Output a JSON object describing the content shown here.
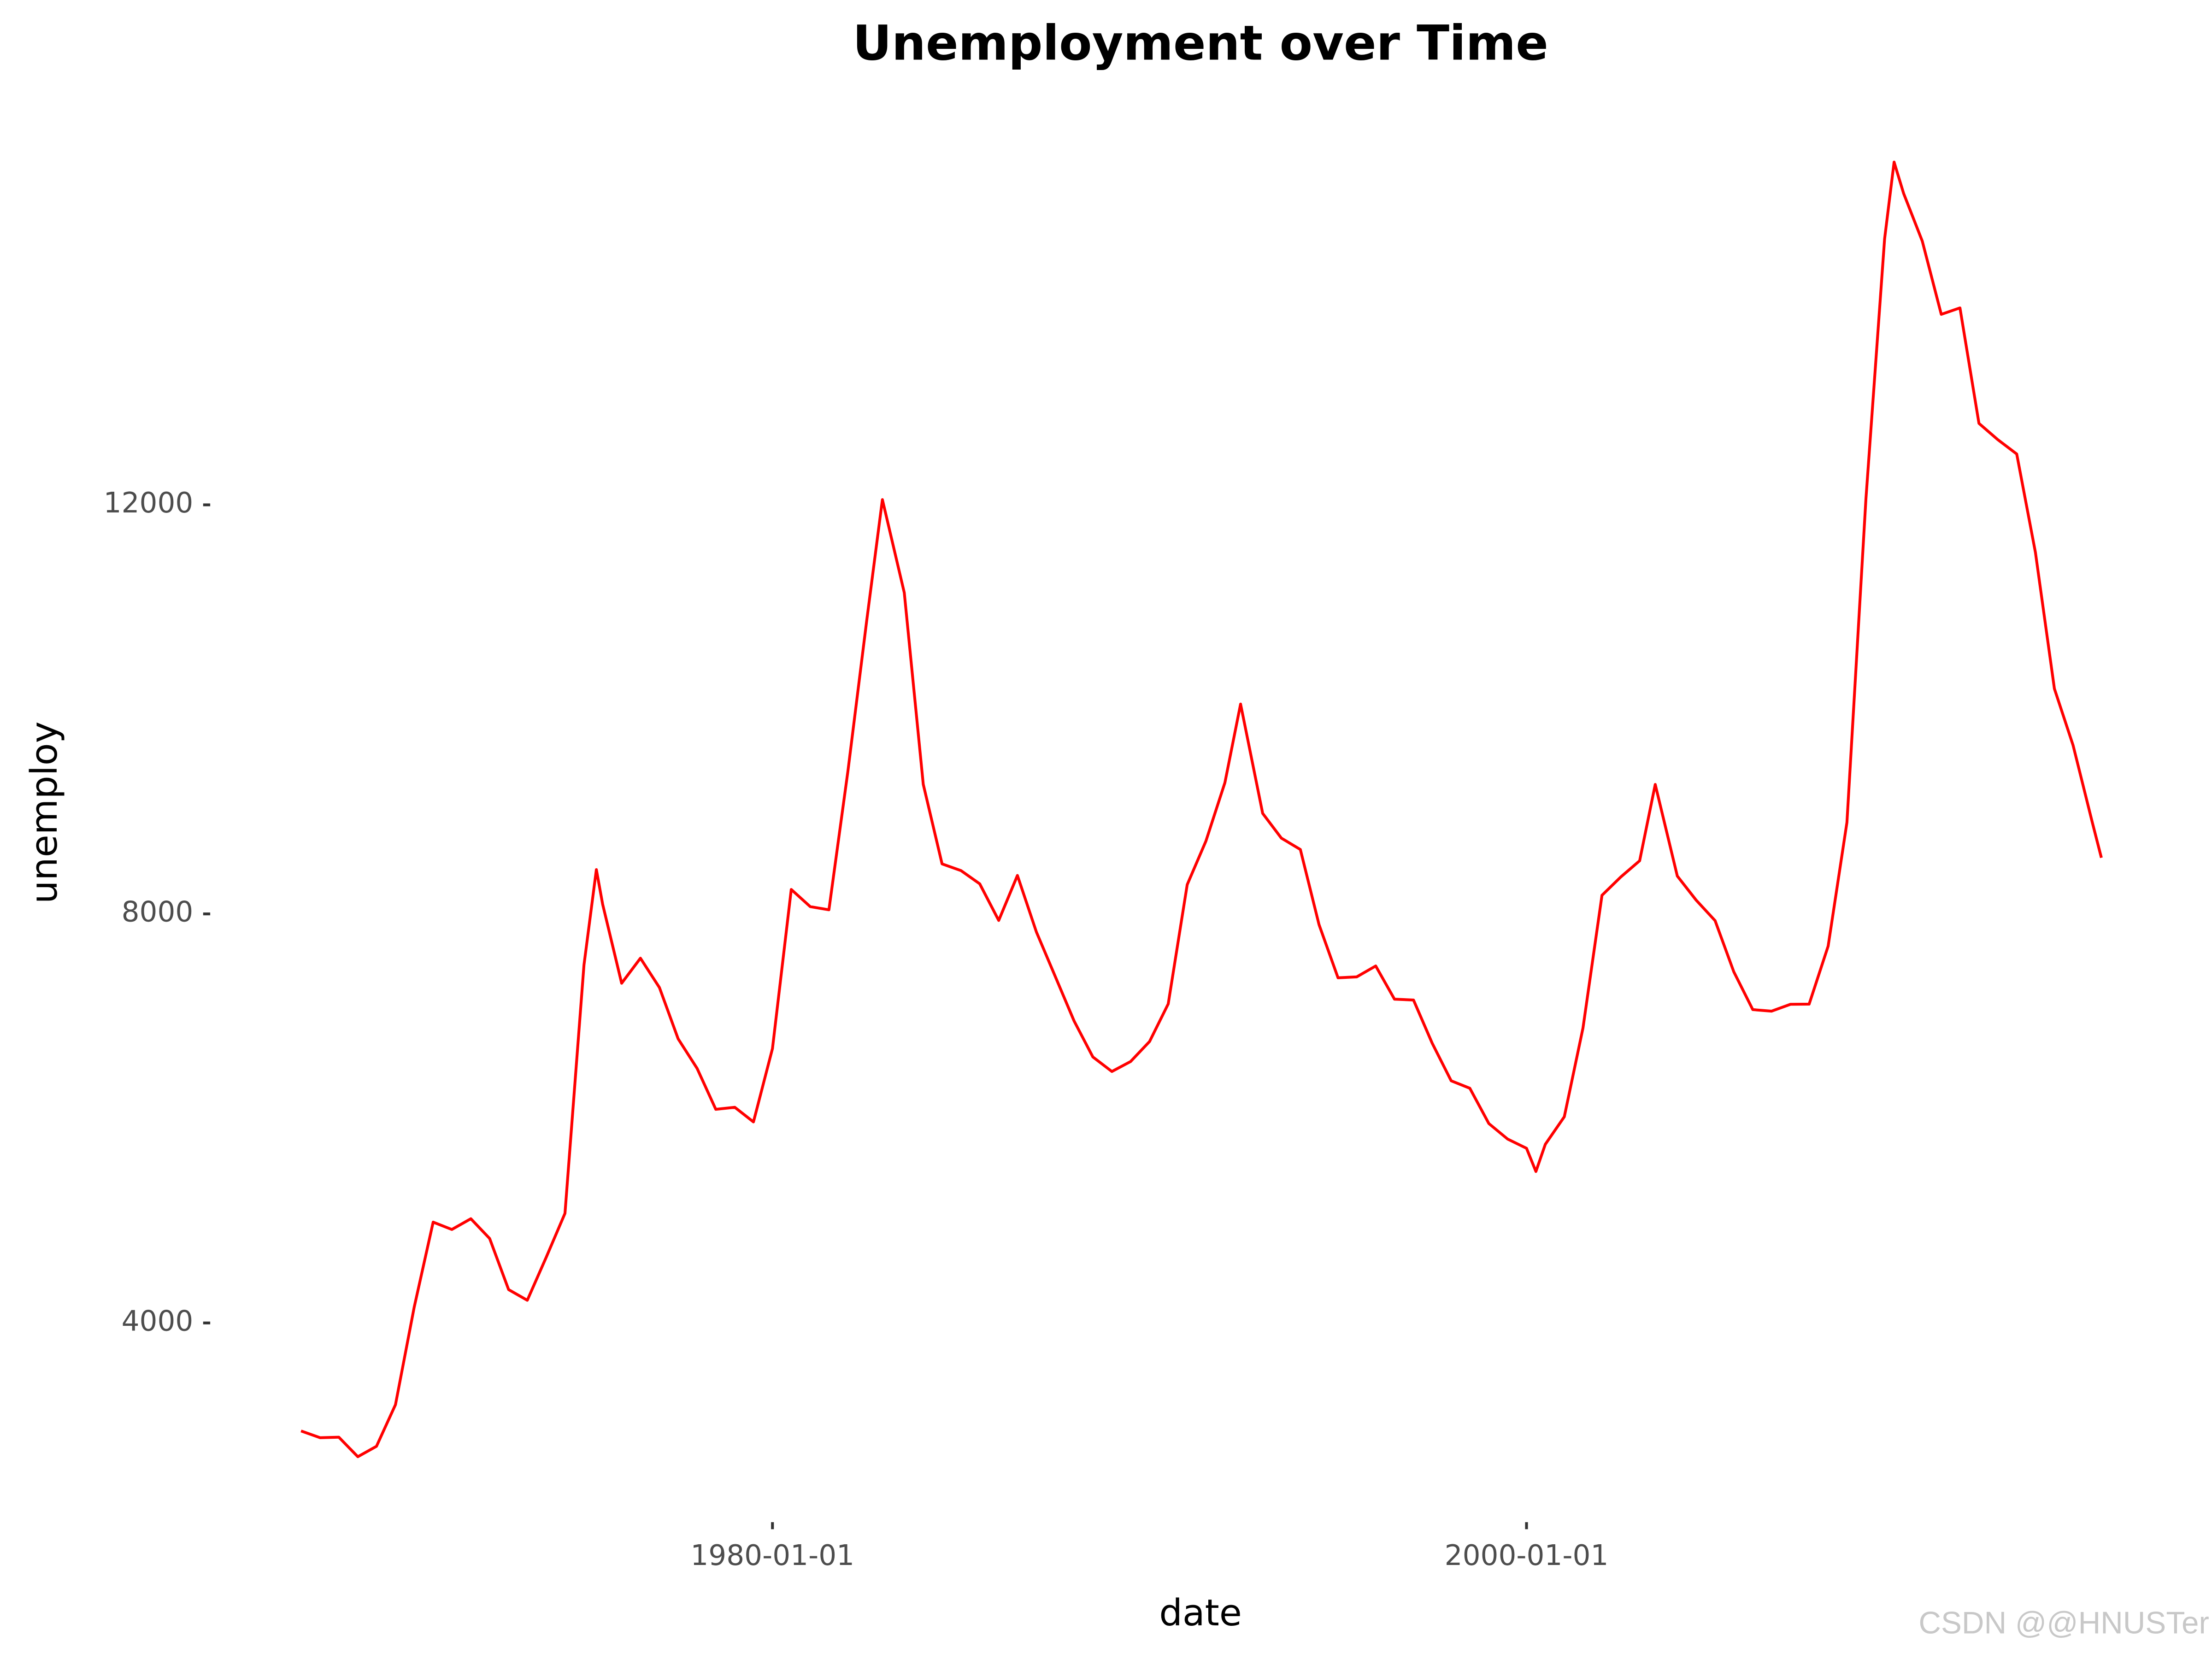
{
  "chart_data": {
    "type": "line",
    "title": "Unemployment over Time",
    "x_label": "date",
    "y_label": "unemploy",
    "watermark": "CSDN @@HNUSTer",
    "x": [
      "1967-07-01",
      "1968-01-01",
      "1968-07-01",
      "1969-01-01",
      "1969-07-01",
      "1970-01-01",
      "1970-07-01",
      "1971-01-01",
      "1971-07-01",
      "1972-01-01",
      "1972-07-01",
      "1973-01-01",
      "1973-07-01",
      "1974-01-01",
      "1974-07-01",
      "1975-01-01",
      "1975-05-01",
      "1975-07-01",
      "1976-01-01",
      "1976-07-01",
      "1977-01-01",
      "1977-07-01",
      "1978-01-01",
      "1978-07-01",
      "1979-01-01",
      "1979-07-01",
      "1980-01-01",
      "1980-07-01",
      "1981-01-01",
      "1981-07-01",
      "1982-01-01",
      "1982-07-01",
      "1982-12-01",
      "1983-07-01",
      "1984-01-01",
      "1984-07-01",
      "1985-01-01",
      "1985-07-01",
      "1986-01-01",
      "1986-07-01",
      "1987-01-01",
      "1987-07-01",
      "1988-01-01",
      "1988-07-01",
      "1989-01-01",
      "1989-07-01",
      "1990-01-01",
      "1990-07-01",
      "1991-01-01",
      "1991-07-01",
      "1992-01-01",
      "1992-06-01",
      "1993-01-01",
      "1993-07-01",
      "1994-01-01",
      "1994-07-01",
      "1995-01-01",
      "1995-07-01",
      "1996-01-01",
      "1996-07-01",
      "1997-01-01",
      "1997-07-01",
      "1998-01-01",
      "1998-07-01",
      "1999-01-01",
      "1999-07-01",
      "2000-01-01",
      "2000-04-01",
      "2000-07-01",
      "2001-01-01",
      "2001-07-01",
      "2002-01-01",
      "2002-07-01",
      "2003-01-01",
      "2003-06-01",
      "2004-01-01",
      "2004-07-01",
      "2005-01-01",
      "2005-07-01",
      "2006-01-01",
      "2006-07-01",
      "2007-01-01",
      "2007-07-01",
      "2008-01-01",
      "2008-07-01",
      "2009-01-01",
      "2009-07-01",
      "2009-10-01",
      "2010-01-01",
      "2010-07-01",
      "2011-01-01",
      "2011-07-01",
      "2012-01-01",
      "2012-07-01",
      "2013-01-01",
      "2013-07-01",
      "2014-01-01",
      "2014-07-01",
      "2015-01-01",
      "2015-04-01"
    ],
    "series": [
      {
        "name": "unemploy",
        "color": "#ff0000",
        "values": [
          2944,
          2878,
          2883,
          2692,
          2794,
          3201,
          4153,
          4986,
          4914,
          5019,
          4826,
          4326,
          4222,
          4644,
          5072,
          7501,
          8433,
          8094,
          7322,
          7567,
          7280,
          6779,
          6489,
          6089,
          6109,
          5966,
          6683,
          8239,
          8071,
          8040,
          9397,
          10860,
          12051,
          11141,
          9267,
          8489,
          8423,
          8294,
          7936,
          8376,
          7823,
          7392,
          6953,
          6601,
          6459,
          6556,
          6752,
          7120,
          8286,
          8712,
          9283,
          10052,
          8983,
          8741,
          8630,
          7895,
          7375,
          7384,
          7491,
          7166,
          7158,
          6736,
          6368,
          6295,
          5950,
          5799,
          5708,
          5481,
          5747,
          6016,
          6884,
          8182,
          8360,
          8520,
          9266,
          8370,
          8135,
          7934,
          7434,
          7064,
          7049,
          7116,
          7118,
          7685,
          8895,
          12058,
          14601,
          15352,
          15046,
          14579,
          13863,
          13926,
          12797,
          12638,
          12497,
          11535,
          10202,
          9648,
          8903,
          8549
        ]
      }
    ],
    "xlim": [
      "1965-02-01",
      "2017-08-01"
    ],
    "xticks": [
      "1980-01-01",
      "2000-01-01"
    ],
    "ylim": [
      2052,
      15985
    ],
    "yticks": [
      4000,
      8000,
      12000
    ],
    "grid": false
  }
}
